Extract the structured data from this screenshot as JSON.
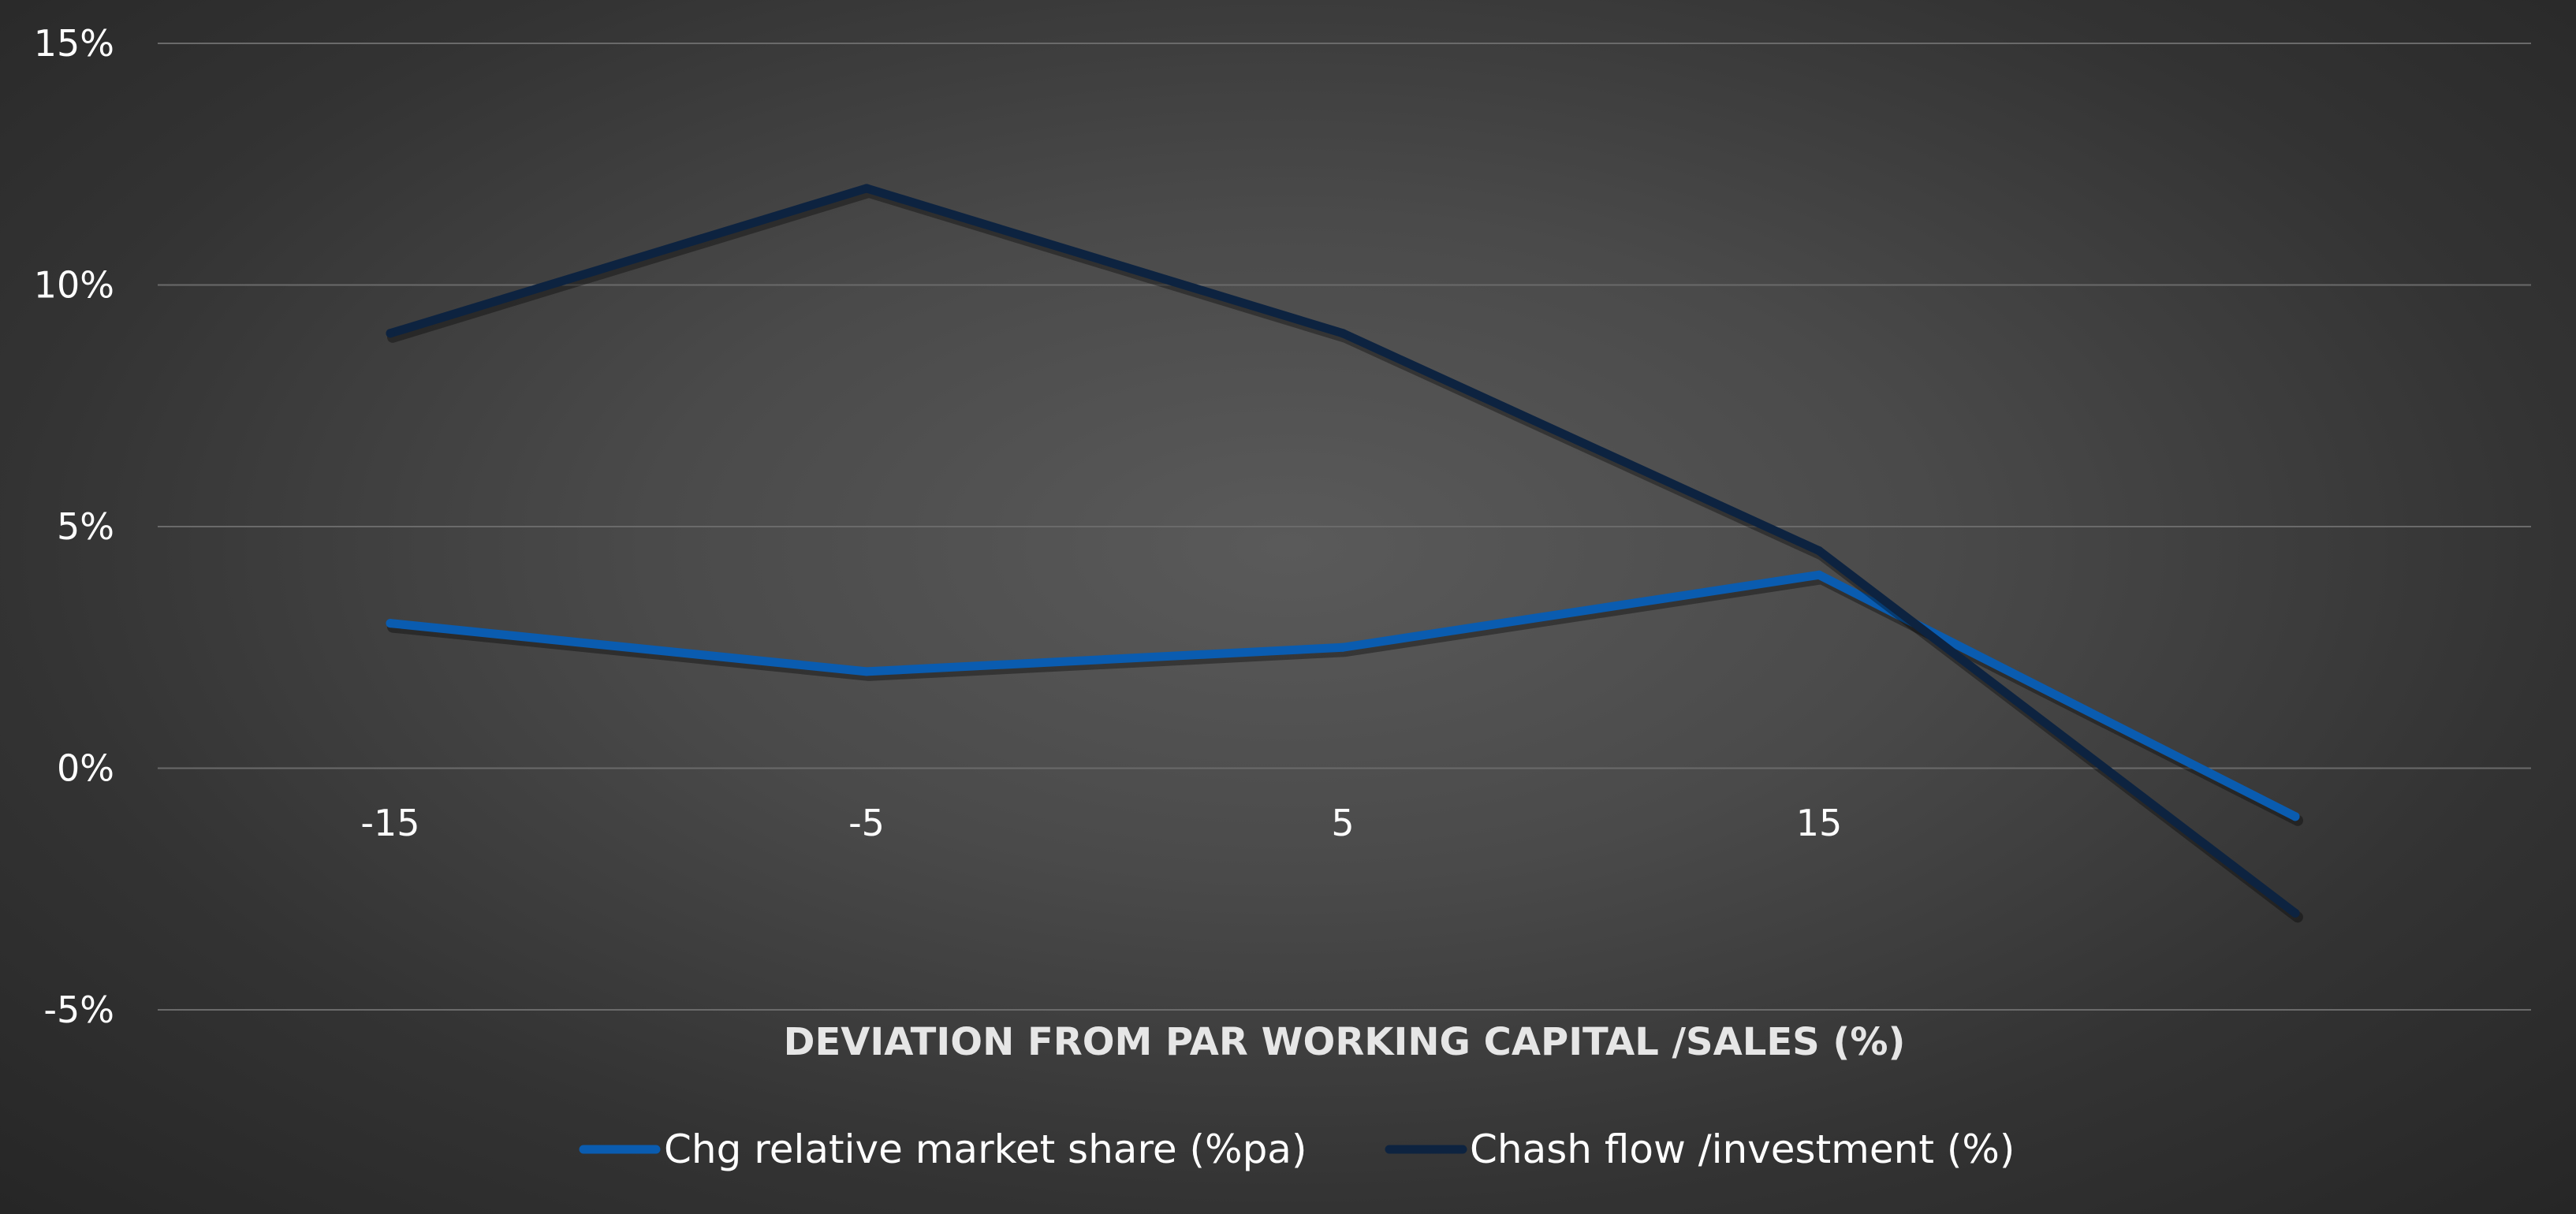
{
  "chart_data": {
    "type": "line",
    "title": "",
    "xlabel": "DEVIATION FROM PAR WORKING  CAPITAL /SALES (%)",
    "ylabel": "",
    "categories": [
      "-15",
      "-5",
      "5",
      "15",
      ""
    ],
    "y_ticks": [
      "-5%",
      "0%",
      "5%",
      "10%",
      "15%"
    ],
    "ylim": [
      -5,
      15
    ],
    "grid": true,
    "legend_position": "bottom",
    "series": [
      {
        "name": "Chg relative market share (%pa)",
        "color": "#0a5cb0",
        "values": [
          3,
          2,
          2.5,
          4,
          -1
        ]
      },
      {
        "name": "Chash flow /investment (%)",
        "color": "#0d2340",
        "values": [
          9,
          12,
          9,
          4.5,
          -3
        ]
      }
    ]
  }
}
